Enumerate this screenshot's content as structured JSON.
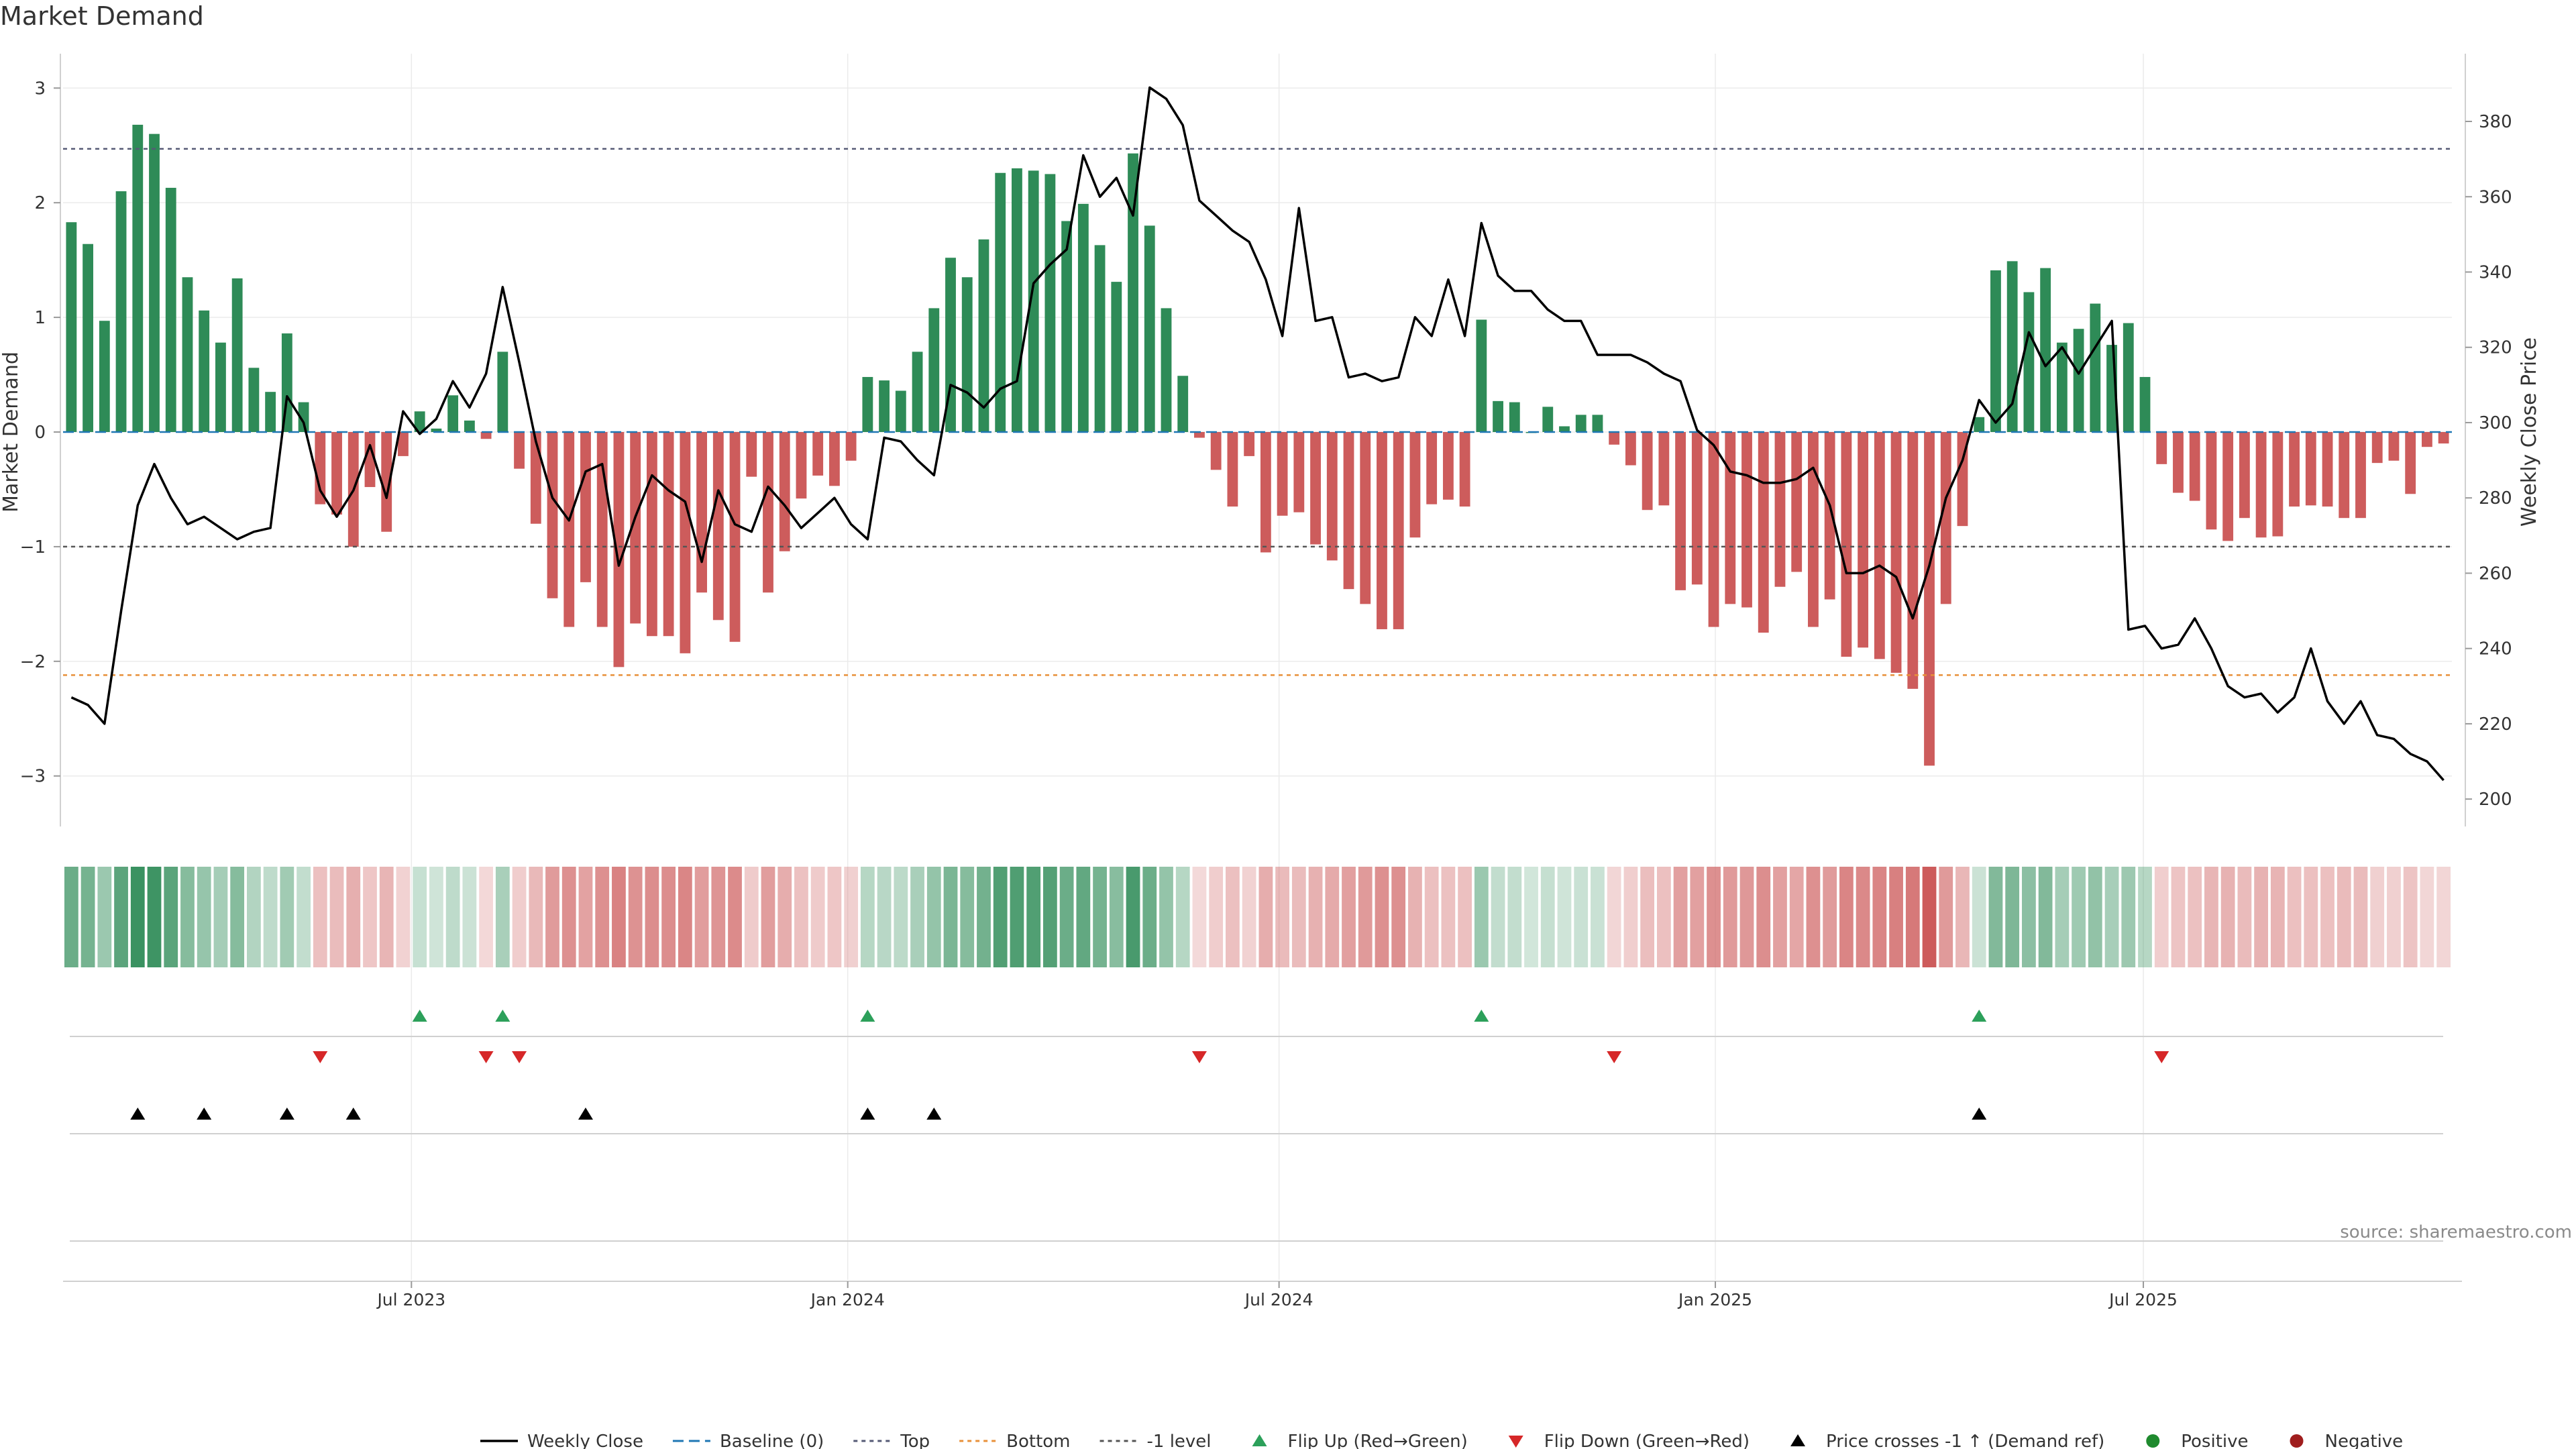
{
  "title": "Market Demand",
  "source": "source: sharemaestro.com",
  "colors": {
    "pos": "#2e8b57",
    "neg": "#cd5c5c",
    "line": "#000000",
    "top": "#555a75",
    "bottom": "#e8913a",
    "minus1": "#555555",
    "baseline": "#1f77b4",
    "flipUp": "#2ca05a",
    "flipDown": "#d62728",
    "cross": "#000000",
    "posDot": "#1f8a2e",
    "negDot": "#a01e1e",
    "grid": "#ebebeb",
    "axis": "#d0d0d0",
    "text": "#333333",
    "source": "#8a8a8a"
  },
  "chart_data": {
    "type": "bar",
    "title": "Market Demand",
    "ylabel": "Market Demand",
    "y2label": "Weekly Close Price",
    "ylim": [
      -3.3,
      3.3
    ],
    "y2lim": [
      197,
      398
    ],
    "yticks": [
      3,
      2,
      1,
      0,
      -1,
      -2,
      -3
    ],
    "yticklabels": [
      "3",
      "2",
      "1",
      "0",
      "−1",
      "−2",
      "−3"
    ],
    "y2ticks": [
      380,
      360,
      340,
      320,
      300,
      280,
      260,
      240,
      220,
      200
    ],
    "y2ticklabels": [
      "380",
      "360",
      "340",
      "320",
      "300",
      "280",
      "260",
      "240",
      "220",
      "200"
    ],
    "reference_lines": {
      "top": 2.47,
      "minus1": -1.0,
      "bottom": -2.12,
      "baseline": 0
    },
    "xticks": [
      {
        "index": 21,
        "label": "Jul 2023"
      },
      {
        "index": 47.3,
        "label": "Jan 2024"
      },
      {
        "index": 73.3,
        "label": "Jul 2024"
      },
      {
        "index": 99.6,
        "label": "Jan 2025"
      },
      {
        "index": 125.4,
        "label": "Jul 2025"
      }
    ],
    "demand": [
      1.83,
      1.64,
      0.97,
      2.1,
      2.68,
      2.6,
      2.13,
      1.35,
      1.06,
      0.78,
      1.34,
      0.56,
      0.35,
      0.86,
      0.26,
      -0.63,
      -0.72,
      -1.0,
      -0.48,
      -0.87,
      -0.21,
      0.18,
      0.03,
      0.32,
      0.1,
      -0.06,
      0.7,
      -0.32,
      -0.8,
      -1.45,
      -1.7,
      -1.31,
      -1.7,
      -2.05,
      -1.67,
      -1.78,
      -1.78,
      -1.93,
      -1.4,
      -1.64,
      -1.83,
      -0.39,
      -1.4,
      -1.04,
      -0.58,
      -0.38,
      -0.47,
      -0.25,
      0.48,
      0.45,
      0.36,
      0.7,
      1.08,
      1.52,
      1.35,
      1.68,
      2.26,
      2.3,
      2.28,
      2.25,
      1.84,
      1.99,
      1.63,
      1.31,
      2.43,
      1.8,
      1.08,
      0.49,
      -0.05,
      -0.33,
      -0.65,
      -0.21,
      -1.05,
      -0.73,
      -0.7,
      -0.98,
      -1.12,
      -1.37,
      -1.5,
      -1.72,
      -1.72,
      -0.92,
      -0.63,
      -0.59,
      -0.65,
      0.98,
      0.27,
      0.26,
      0.0,
      0.22,
      0.05,
      0.15,
      0.15,
      -0.11,
      -0.29,
      -0.68,
      -0.64,
      -1.38,
      -1.33,
      -1.7,
      -1.5,
      -1.53,
      -1.75,
      -1.35,
      -1.22,
      -1.7,
      -1.46,
      -1.96,
      -1.88,
      -1.98,
      -2.1,
      -2.24,
      -2.91,
      -1.5,
      -0.82,
      0.13,
      1.41,
      1.49,
      1.22,
      1.43,
      0.78,
      0.9,
      1.12,
      0.76,
      0.95,
      0.48,
      -0.28,
      -0.53,
      -0.6,
      -0.85,
      -0.95,
      -0.75,
      -0.92,
      -0.91,
      -0.65,
      -0.64,
      -0.65,
      -0.75,
      -0.75,
      -0.27,
      -0.25,
      -0.54,
      -0.13,
      -0.1
    ],
    "weekly_close": [
      227,
      225,
      220,
      250,
      278,
      289,
      280,
      273,
      275,
      272,
      269,
      271,
      272,
      307,
      300,
      282,
      275,
      282,
      294,
      280,
      303,
      297,
      301,
      311,
      304,
      313,
      336,
      316,
      295,
      280,
      274,
      287,
      289,
      262,
      275,
      286,
      282,
      279,
      263,
      282,
      273,
      271,
      283,
      278,
      272,
      276,
      280,
      273,
      269,
      296,
      295,
      290,
      286,
      310,
      308,
      304,
      309,
      311,
      337,
      342,
      346,
      371,
      360,
      365,
      355,
      389,
      386,
      379,
      359,
      355,
      351,
      348,
      338,
      323,
      357,
      327,
      328,
      312,
      313,
      311,
      312,
      328,
      323,
      338,
      323,
      353,
      339,
      335,
      335,
      330,
      327,
      327,
      318,
      318,
      318,
      316,
      313,
      311,
      298,
      294,
      287,
      286,
      284,
      284,
      285,
      288,
      278,
      260,
      260,
      262,
      259,
      248,
      262,
      280,
      290,
      306,
      300,
      305,
      324,
      315,
      320,
      313,
      320,
      327,
      245,
      246,
      240,
      241,
      248,
      240,
      230,
      227,
      228,
      223,
      227,
      240,
      226,
      220,
      226,
      217,
      216,
      212,
      210,
      205
    ],
    "flip_up_index": [
      21,
      26,
      48,
      85,
      115
    ],
    "flip_down_index": [
      15,
      25,
      27,
      68,
      93,
      126
    ],
    "price_cross_index": [
      4,
      8,
      13,
      17,
      31,
      48,
      52,
      115
    ]
  },
  "legend": [
    {
      "key": "line",
      "label": "Weekly Close"
    },
    {
      "key": "baseline",
      "label": "Baseline (0)"
    },
    {
      "key": "top",
      "label": "Top"
    },
    {
      "key": "bottom",
      "label": "Bottom"
    },
    {
      "key": "minus1",
      "label": "-1 level"
    },
    {
      "key": "flipUp",
      "label": "Flip Up (Red→Green)"
    },
    {
      "key": "flipDown",
      "label": "Flip Down (Green→Red)"
    },
    {
      "key": "cross",
      "label": "Price crosses -1 ↑ (Demand ref)"
    },
    {
      "key": "posDot",
      "label": "Positive"
    },
    {
      "key": "negDot",
      "label": "Negative"
    }
  ]
}
